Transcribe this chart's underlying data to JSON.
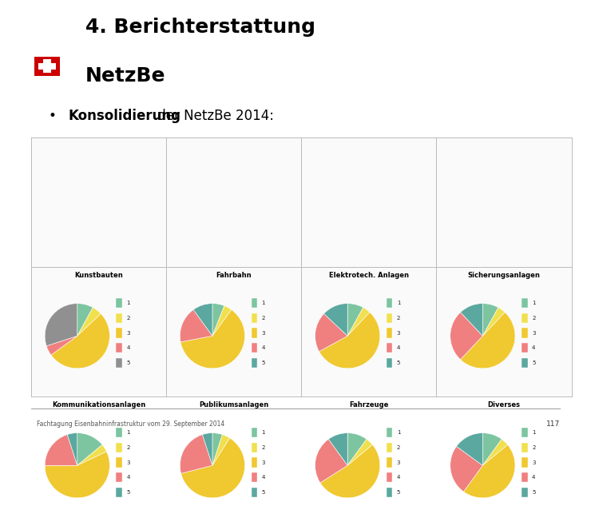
{
  "title_line1": "4. Berichterstattung",
  "title_line2": "NetzBe",
  "subtitle_bold": "Konsolidierung",
  "subtitle_rest": " der NetzBe 2014:",
  "footer": "Fachtagung Eisenbahninfrastruktur vom 29. September 2014",
  "page_number": "117",
  "charts": [
    {
      "title": "Kunstbauten",
      "values": [
        8,
        5,
        52,
        5,
        30
      ],
      "colors": [
        "#7DC5A0",
        "#F0E050",
        "#F0C830",
        "#F08080",
        "#909090"
      ]
    },
    {
      "title": "Fahrbahn",
      "values": [
        6,
        4,
        62,
        18,
        10
      ],
      "colors": [
        "#7DC5A0",
        "#F0E050",
        "#F0C830",
        "#F08080",
        "#5BA8A0"
      ]
    },
    {
      "title": "Elektrotech. Anlagen",
      "values": [
        8,
        4,
        55,
        20,
        13
      ],
      "colors": [
        "#7DC5A0",
        "#F0E050",
        "#F0C830",
        "#F08080",
        "#5BA8A0"
      ]
    },
    {
      "title": "Sicherungsanlagen",
      "values": [
        8,
        4,
        50,
        26,
        12
      ],
      "colors": [
        "#7DC5A0",
        "#F0E050",
        "#F0C830",
        "#F08080",
        "#5BA8A0"
      ]
    },
    {
      "title": "Kommunikationsanlagen",
      "values": [
        14,
        4,
        57,
        20,
        5
      ],
      "colors": [
        "#7DC5A0",
        "#F0E050",
        "#F0C830",
        "#F08080",
        "#5BA8A0"
      ]
    },
    {
      "title": "Publikumsanlagen",
      "values": [
        5,
        4,
        62,
        24,
        5
      ],
      "colors": [
        "#7DC5A0",
        "#F0E050",
        "#F0C830",
        "#F08080",
        "#5BA8A0"
      ]
    },
    {
      "title": "Fahrzeuge",
      "values": [
        10,
        4,
        52,
        24,
        10
      ],
      "colors": [
        "#7DC5A0",
        "#F0E050",
        "#F0C830",
        "#F08080",
        "#5BA8A0"
      ]
    },
    {
      "title": "Diverses",
      "values": [
        10,
        4,
        46,
        25,
        15
      ],
      "colors": [
        "#7DC5A0",
        "#F0E050",
        "#F0C830",
        "#F08080",
        "#5BA8A0"
      ]
    }
  ],
  "legend_labels": [
    "1",
    "2",
    "3",
    "4",
    "5"
  ],
  "background_color": "#FFFFFF",
  "border_color": "#BBBBBB",
  "title_color": "#000000",
  "swiss_cross_color": "#CC0000"
}
